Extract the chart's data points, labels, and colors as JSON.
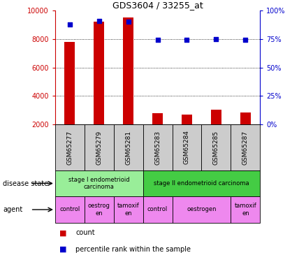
{
  "title": "GDS3604 / 33255_at",
  "samples": [
    "GSM65277",
    "GSM65279",
    "GSM65281",
    "GSM65283",
    "GSM65284",
    "GSM65285",
    "GSM65287"
  ],
  "counts": [
    7800,
    9200,
    9500,
    2800,
    2700,
    3050,
    2850
  ],
  "percentile_ranks": [
    88,
    91,
    90,
    74,
    74,
    75,
    74
  ],
  "ylim_left": [
    2000,
    10000
  ],
  "ylim_right": [
    0,
    100
  ],
  "yticks_left": [
    2000,
    4000,
    6000,
    8000,
    10000
  ],
  "yticks_right": [
    0,
    25,
    50,
    75,
    100
  ],
  "disease_state": [
    {
      "label": "stage I endometrioid\ncarcinoma",
      "span": [
        0,
        3
      ],
      "color": "#99ee99"
    },
    {
      "label": "stage II endometrioid carcinoma",
      "span": [
        3,
        7
      ],
      "color": "#44cc44"
    }
  ],
  "agent": [
    {
      "label": "control",
      "span": [
        0,
        1
      ],
      "color": "#ee88ee"
    },
    {
      "label": "oestrog\nen",
      "span": [
        1,
        2
      ],
      "color": "#ee88ee"
    },
    {
      "label": "tamoxif\nen",
      "span": [
        2,
        3
      ],
      "color": "#ee88ee"
    },
    {
      "label": "control",
      "span": [
        3,
        4
      ],
      "color": "#ee88ee"
    },
    {
      "label": "oestrogen",
      "span": [
        4,
        6
      ],
      "color": "#ee88ee"
    },
    {
      "label": "tamoxif\nen",
      "span": [
        6,
        7
      ],
      "color": "#ee88ee"
    }
  ],
  "bar_color": "#cc0000",
  "scatter_color": "#0000cc",
  "bar_width": 0.35,
  "left_axis_color": "#cc0000",
  "right_axis_color": "#0000cc",
  "sample_bg": "#cccccc",
  "grid_lines": [
    4000,
    6000,
    8000
  ],
  "fig_width": 4.38,
  "fig_height": 3.75,
  "dpi": 100
}
